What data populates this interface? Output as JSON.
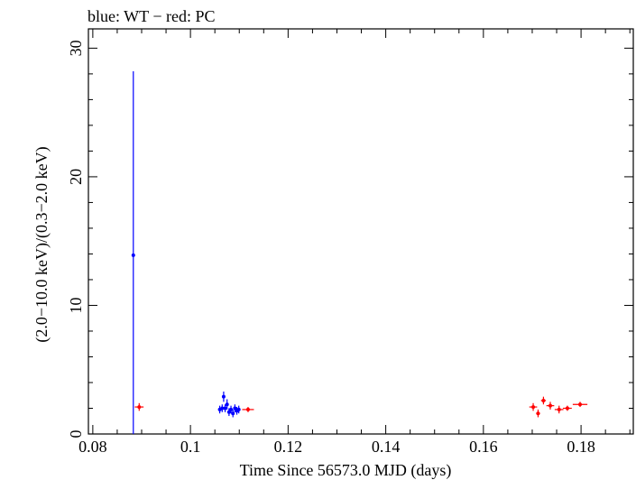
{
  "chart_data": {
    "type": "scatter",
    "title": "blue: WT − red: PC",
    "xlabel": "Time Since 56573.0 MJD (days)",
    "ylabel": "(2.0−10.0 keV)/(0.3−2.0 keV)",
    "xlim": [
      0.0791,
      0.1907
    ],
    "ylim": [
      0,
      31.5
    ],
    "x_ticks": [
      0.08,
      0.1,
      0.12,
      0.14,
      0.16,
      0.18
    ],
    "x_tick_labels": [
      "0.08",
      "0.1",
      "0.12",
      "0.14",
      "0.16",
      "0.18"
    ],
    "y_ticks": [
      0,
      10,
      20,
      30
    ],
    "y_tick_labels": [
      "0",
      "10",
      "20",
      "30"
    ],
    "grid": false,
    "series": [
      {
        "color": "#0000ff",
        "points": [
          {
            "x": 0.0883,
            "y": 13.9,
            "xerr": 0.0001,
            "yerr_lo": 13.9,
            "yerr_hi": 14.3
          },
          {
            "x": 0.106,
            "y": 1.9,
            "xerr": 0.0002,
            "yerr_lo": 0.3,
            "yerr_hi": 0.3
          },
          {
            "x": 0.1065,
            "y": 2.0,
            "xerr": 0.0002,
            "yerr_lo": 0.3,
            "yerr_hi": 0.3
          },
          {
            "x": 0.1068,
            "y": 2.9,
            "xerr": 0.0002,
            "yerr_lo": 0.4,
            "yerr_hi": 0.4
          },
          {
            "x": 0.1071,
            "y": 2.0,
            "xerr": 0.0002,
            "yerr_lo": 0.3,
            "yerr_hi": 0.3
          },
          {
            "x": 0.1075,
            "y": 2.3,
            "xerr": 0.0002,
            "yerr_lo": 0.4,
            "yerr_hi": 0.4
          },
          {
            "x": 0.1079,
            "y": 1.7,
            "xerr": 0.0002,
            "yerr_lo": 0.3,
            "yerr_hi": 0.3
          },
          {
            "x": 0.1083,
            "y": 1.9,
            "xerr": 0.0002,
            "yerr_lo": 0.3,
            "yerr_hi": 0.3
          },
          {
            "x": 0.1087,
            "y": 1.6,
            "xerr": 0.0002,
            "yerr_lo": 0.3,
            "yerr_hi": 0.3
          },
          {
            "x": 0.1091,
            "y": 2.0,
            "xerr": 0.0002,
            "yerr_lo": 0.3,
            "yerr_hi": 0.3
          },
          {
            "x": 0.1095,
            "y": 1.8,
            "xerr": 0.0002,
            "yerr_lo": 0.3,
            "yerr_hi": 0.3
          },
          {
            "x": 0.1099,
            "y": 1.9,
            "xerr": 0.0002,
            "yerr_lo": 0.3,
            "yerr_hi": 0.3
          }
        ]
      },
      {
        "color": "#ff0000",
        "points": [
          {
            "x": 0.0895,
            "y": 2.1,
            "xerr": 0.0009,
            "yerr_lo": 0.3,
            "yerr_hi": 0.3
          },
          {
            "x": 0.1118,
            "y": 1.9,
            "xerr": 0.0012,
            "yerr_lo": 0.2,
            "yerr_hi": 0.2
          },
          {
            "x": 0.1702,
            "y": 2.1,
            "xerr": 0.0008,
            "yerr_lo": 0.3,
            "yerr_hi": 0.3
          },
          {
            "x": 0.1712,
            "y": 1.6,
            "xerr": 0.0004,
            "yerr_lo": 0.3,
            "yerr_hi": 0.3
          },
          {
            "x": 0.1723,
            "y": 2.6,
            "xerr": 0.0005,
            "yerr_lo": 0.3,
            "yerr_hi": 0.3
          },
          {
            "x": 0.1737,
            "y": 2.2,
            "xerr": 0.0008,
            "yerr_lo": 0.3,
            "yerr_hi": 0.3
          },
          {
            "x": 0.1755,
            "y": 1.9,
            "xerr": 0.0009,
            "yerr_lo": 0.3,
            "yerr_hi": 0.3
          },
          {
            "x": 0.1772,
            "y": 2.0,
            "xerr": 0.0009,
            "yerr_lo": 0.2,
            "yerr_hi": 0.2
          },
          {
            "x": 0.1798,
            "y": 2.3,
            "xerr": 0.0015,
            "yerr_lo": 0.2,
            "yerr_hi": 0.2
          }
        ]
      }
    ]
  }
}
